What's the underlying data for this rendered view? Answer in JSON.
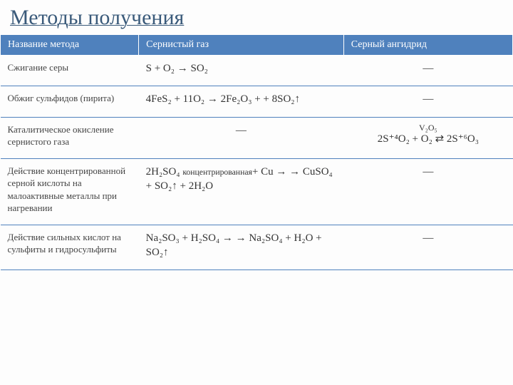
{
  "title": "Методы получения",
  "header": {
    "col1": "Название метода",
    "col2": "Сернистый газ",
    "col3": "Серный  ангидрид"
  },
  "rows": {
    "r1": {
      "name": "Сжигание серы",
      "gas": "S + O₂ → SO₂",
      "anh": "—"
    },
    "r2": {
      "name": "Обжиг сульфидов (пирита)",
      "gas": "4FeS₂ + 11O₂ → 2Fe₂O₃ + + 8SO₂↑",
      "anh": "—"
    },
    "r3": {
      "name": "Каталитическое окисление сернистого газа",
      "gas": "—",
      "anh_cat": "V₂O₅",
      "anh_rx": "2S⁺⁴O₂ + O₂ ⇄ 2S⁺⁶O₃"
    },
    "r4": {
      "name": "Действие концентрированной серной кислоты на малоактивные металлы при нагревании",
      "gas_pre": "2H₂SO₄ ",
      "gas_sub": "концентрированная",
      "gas_post": "+ Cu → → CuSO₄ + SO₂↑ + 2H₂O",
      "anh": "—"
    },
    "r5": {
      "name": "Действие сильных кислот на сульфиты и гидросульфиты",
      "gas": "Na₂SO₃ + H₂SO₄ → → Na₂SO₄ + H₂O + SO₂↑",
      "anh": "—"
    }
  },
  "colors": {
    "accent": "#4f81bd",
    "title": "#3a5a7a",
    "bg": "#fdfdfd"
  }
}
